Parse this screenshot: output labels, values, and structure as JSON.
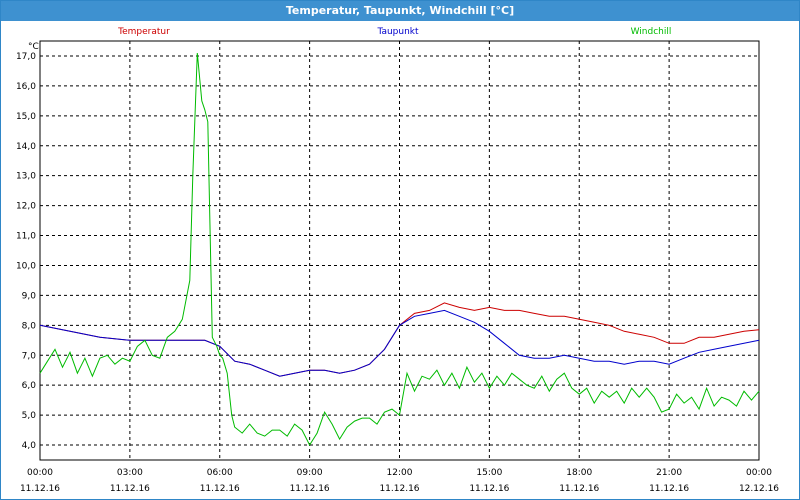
{
  "window": {
    "title": "Temperatur, Taupunkt, Windchill [°C]"
  },
  "colors": {
    "title_bar": "#3e91d0",
    "temperatur": "#cc0000",
    "taupunkt": "#0000cc",
    "windchill": "#00bb00",
    "grid": "#000000"
  },
  "chart_data": {
    "type": "line",
    "title": "Temperatur, Taupunkt, Windchill [°C]",
    "ylabel": "°C",
    "xlabel": "",
    "ylim": [
      3.5,
      17.5
    ],
    "y_ticks": [
      "4,0",
      "5,0",
      "6,0",
      "7,0",
      "8,0",
      "9,0",
      "10,0",
      "11,0",
      "12,0",
      "13,0",
      "14,0",
      "15,0",
      "16,0",
      "17,0"
    ],
    "x_ticks": [
      {
        "time": "00:00",
        "date": "11.12.16"
      },
      {
        "time": "03:00",
        "date": "11.12.16"
      },
      {
        "time": "06:00",
        "date": "11.12.16"
      },
      {
        "time": "09:00",
        "date": "11.12.16"
      },
      {
        "time": "12:00",
        "date": "11.12.16"
      },
      {
        "time": "15:00",
        "date": "11.12.16"
      },
      {
        "time": "18:00",
        "date": "11.12.16"
      },
      {
        "time": "21:00",
        "date": "11.12.16"
      },
      {
        "time": "00:00",
        "date": "12.12.16"
      }
    ],
    "grid": true,
    "legend_position": "top",
    "series": [
      {
        "name": "Temperatur",
        "color": "#cc0000",
        "hours": [
          0,
          1,
          2,
          3,
          4,
          5,
          5.5,
          6,
          6.5,
          7,
          7.5,
          8,
          8.5,
          9,
          9.5,
          10,
          10.5,
          11,
          11.5,
          12,
          12.5,
          13,
          13.5,
          14,
          14.5,
          15,
          15.5,
          16,
          16.5,
          17,
          17.5,
          18,
          18.5,
          19,
          19.5,
          20,
          20.5,
          21,
          21.5,
          22,
          22.5,
          23,
          23.5,
          24
        ],
        "values": [
          8.0,
          7.8,
          7.6,
          7.5,
          7.5,
          7.5,
          7.5,
          7.3,
          6.8,
          6.7,
          6.5,
          6.3,
          6.4,
          6.5,
          6.5,
          6.4,
          6.5,
          6.7,
          7.2,
          8.0,
          8.4,
          8.5,
          8.75,
          8.6,
          8.5,
          8.6,
          8.5,
          8.5,
          8.4,
          8.3,
          8.3,
          8.2,
          8.1,
          8.0,
          7.8,
          7.7,
          7.6,
          7.4,
          7.4,
          7.6,
          7.6,
          7.7,
          7.8,
          7.85
        ]
      },
      {
        "name": "Taupunkt",
        "color": "#0000cc",
        "hours": [
          0,
          1,
          2,
          3,
          4,
          5,
          5.5,
          6,
          6.5,
          7,
          7.5,
          8,
          8.5,
          9,
          9.5,
          10,
          10.5,
          11,
          11.5,
          12,
          12.5,
          13,
          13.5,
          14,
          14.5,
          15,
          15.5,
          16,
          16.5,
          17,
          17.5,
          18,
          18.5,
          19,
          19.5,
          20,
          20.5,
          21,
          21.5,
          22,
          22.5,
          23,
          23.5,
          24
        ],
        "values": [
          8.0,
          7.8,
          7.6,
          7.5,
          7.5,
          7.5,
          7.5,
          7.3,
          6.8,
          6.7,
          6.5,
          6.3,
          6.4,
          6.5,
          6.5,
          6.4,
          6.5,
          6.7,
          7.2,
          8.0,
          8.3,
          8.4,
          8.5,
          8.3,
          8.1,
          7.8,
          7.4,
          7.0,
          6.9,
          6.9,
          7.0,
          6.9,
          6.8,
          6.8,
          6.7,
          6.8,
          6.8,
          6.7,
          6.9,
          7.1,
          7.2,
          7.3,
          7.4,
          7.5
        ]
      },
      {
        "name": "Windchill",
        "color": "#00bb00",
        "hours": [
          0,
          0.25,
          0.5,
          0.75,
          1,
          1.25,
          1.5,
          1.75,
          2,
          2.25,
          2.5,
          2.75,
          3,
          3.25,
          3.5,
          3.75,
          4,
          4.25,
          4.5,
          4.75,
          5,
          5.1,
          5.25,
          5.4,
          5.5,
          5.6,
          5.75,
          5.9,
          6,
          6.1,
          6.25,
          6.4,
          6.5,
          6.75,
          7,
          7.25,
          7.5,
          7.75,
          8,
          8.25,
          8.5,
          8.75,
          9,
          9.25,
          9.5,
          9.75,
          10,
          10.25,
          10.5,
          10.75,
          11,
          11.25,
          11.5,
          11.75,
          12,
          12.25,
          12.5,
          12.75,
          13,
          13.25,
          13.5,
          13.75,
          14,
          14.25,
          14.5,
          14.75,
          15,
          15.25,
          15.5,
          15.75,
          16,
          16.25,
          16.5,
          16.75,
          17,
          17.25,
          17.5,
          17.75,
          18,
          18.25,
          18.5,
          18.75,
          19,
          19.25,
          19.5,
          19.75,
          20,
          20.25,
          20.5,
          20.75,
          21,
          21.25,
          21.5,
          21.75,
          22,
          22.25,
          22.5,
          22.75,
          23,
          23.25,
          23.5,
          23.75,
          24
        ],
        "values": [
          6.4,
          6.8,
          7.2,
          6.6,
          7.1,
          6.4,
          6.9,
          6.3,
          6.9,
          7.0,
          6.7,
          6.9,
          6.8,
          7.3,
          7.5,
          7.0,
          6.9,
          7.6,
          7.8,
          8.2,
          9.5,
          13.0,
          17.1,
          15.5,
          15.2,
          14.8,
          7.6,
          7.3,
          7.0,
          6.9,
          6.4,
          5.0,
          4.6,
          4.4,
          4.7,
          4.4,
          4.3,
          4.5,
          4.5,
          4.3,
          4.7,
          4.5,
          4.0,
          4.4,
          5.1,
          4.7,
          4.2,
          4.6,
          4.8,
          4.9,
          4.9,
          4.7,
          5.1,
          5.2,
          5.0,
          6.4,
          5.8,
          6.3,
          6.2,
          6.5,
          6.0,
          6.4,
          5.9,
          6.6,
          6.1,
          6.4,
          5.9,
          6.3,
          6.0,
          6.4,
          6.2,
          6.0,
          5.9,
          6.3,
          5.8,
          6.2,
          6.4,
          5.9,
          5.7,
          5.9,
          5.4,
          5.8,
          5.6,
          5.8,
          5.4,
          5.9,
          5.6,
          5.9,
          5.6,
          5.1,
          5.2,
          5.7,
          5.4,
          5.6,
          5.2,
          5.9,
          5.3,
          5.6,
          5.5,
          5.3,
          5.8,
          5.5,
          5.8
        ]
      }
    ]
  }
}
